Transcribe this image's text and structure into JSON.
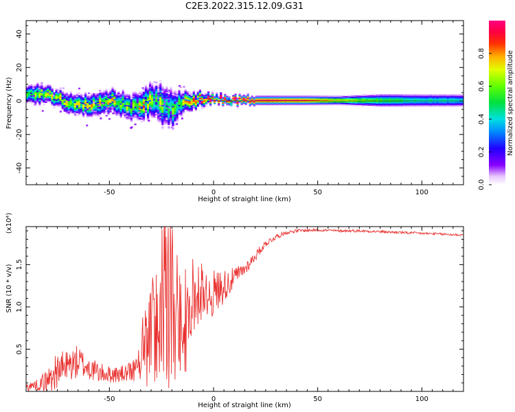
{
  "figure": {
    "title": "C2E3.2022.315.12.09.G31"
  },
  "chart_data": [
    {
      "type": "heatmap",
      "xlabel": "Height of straight line (km)",
      "ylabel": "Frequency (Hz)",
      "xlim": [
        -90,
        120
      ],
      "ylim": [
        -50,
        48
      ],
      "x_ticks": [
        -50,
        0,
        50,
        100
      ],
      "y_ticks": [
        -40,
        -20,
        0,
        20,
        40
      ],
      "colorbar": {
        "label": "Normalized spectral amplitude",
        "range": [
          0,
          1
        ],
        "ticks": [
          "0.0",
          "0.2",
          "0.4",
          "0.6",
          "0.8"
        ],
        "tick_values": [
          0,
          0.2,
          0.4,
          0.6,
          0.8
        ],
        "colormap": "rainbow (white-purple-blue-cyan-green-yellow-red-magenta)"
      },
      "ridge": {
        "description": "frequency of spectral peak vs height",
        "x": [
          -90,
          -85,
          -80,
          -75,
          -70,
          -65,
          -60,
          -55,
          -50,
          -45,
          -40,
          -35,
          -30,
          -25,
          -20,
          -15,
          -10,
          -5,
          0,
          10,
          20,
          40,
          60,
          80,
          100,
          120
        ],
        "freq": [
          3,
          4,
          3,
          1,
          -1,
          -3,
          -3,
          -2,
          0,
          -2,
          -4,
          -3,
          1,
          -3,
          -5,
          0,
          0,
          1,
          1,
          0,
          0,
          0,
          0,
          0,
          0,
          0
        ],
        "spread_hz": [
          4,
          5,
          4,
          4,
          5,
          5,
          5,
          6,
          5,
          6,
          6,
          7,
          8,
          10,
          9,
          5,
          4,
          3,
          2,
          2,
          2,
          2,
          2,
          3,
          3,
          3
        ],
        "peak_amplitude": [
          0.55,
          0.6,
          0.5,
          0.55,
          0.6,
          0.5,
          0.6,
          0.55,
          0.7,
          0.6,
          0.5,
          0.6,
          0.55,
          0.5,
          0.45,
          0.6,
          0.7,
          0.85,
          0.9,
          0.95,
          1.0,
          0.95,
          0.7,
          0.55,
          0.45,
          0.4
        ]
      }
    },
    {
      "type": "line",
      "xlabel": "Height of straight line (km)",
      "ylabel": "SNR (10 * v/v)",
      "y_multiplier": "(x10⁴)",
      "xlim": [
        -90,
        120
      ],
      "ylim": [
        0,
        1.95
      ],
      "x_ticks": [
        -50,
        0,
        50,
        100
      ],
      "y_ticks": [
        0.5,
        1.0,
        1.5
      ],
      "color": "#e8302e",
      "series": [
        {
          "x": [
            -90,
            -85,
            -80,
            -77,
            -75,
            -70,
            -65,
            -60,
            -55,
            -50,
            -45,
            -40,
            -35,
            -33,
            -30,
            -28,
            -25,
            -23,
            -22,
            -20,
            -17,
            -15,
            -13,
            -10,
            -8,
            -5,
            -3,
            0,
            2,
            5,
            8,
            10,
            15,
            20,
            25,
            30,
            35,
            40,
            50,
            60,
            70,
            80,
            90,
            100,
            110,
            120
          ],
          "base": [
            0.05,
            0.08,
            0.12,
            0.2,
            0.25,
            0.3,
            0.35,
            0.28,
            0.22,
            0.2,
            0.2,
            0.22,
            0.25,
            0.5,
            0.7,
            0.8,
            0.9,
            0.85,
            0.8,
            0.7,
            0.6,
            0.55,
            0.7,
            0.85,
            1.0,
            1.1,
            1.15,
            1.15,
            1.2,
            1.25,
            1.3,
            1.35,
            1.45,
            1.6,
            1.75,
            1.83,
            1.88,
            1.9,
            1.91,
            1.9,
            1.9,
            1.89,
            1.88,
            1.87,
            1.86,
            1.85
          ],
          "noise": [
            0.05,
            0.06,
            0.15,
            0.2,
            0.2,
            0.2,
            0.2,
            0.15,
            0.12,
            0.1,
            0.1,
            0.12,
            0.15,
            0.5,
            0.6,
            0.7,
            0.8,
            0.9,
            0.9,
            0.7,
            0.55,
            0.5,
            0.45,
            0.4,
            0.35,
            0.25,
            0.25,
            0.3,
            0.25,
            0.2,
            0.15,
            0.12,
            0.08,
            0.06,
            0.04,
            0.03,
            0.02,
            0.02,
            0.015,
            0.015,
            0.015,
            0.015,
            0.015,
            0.015,
            0.015,
            0.015
          ]
        }
      ]
    }
  ]
}
